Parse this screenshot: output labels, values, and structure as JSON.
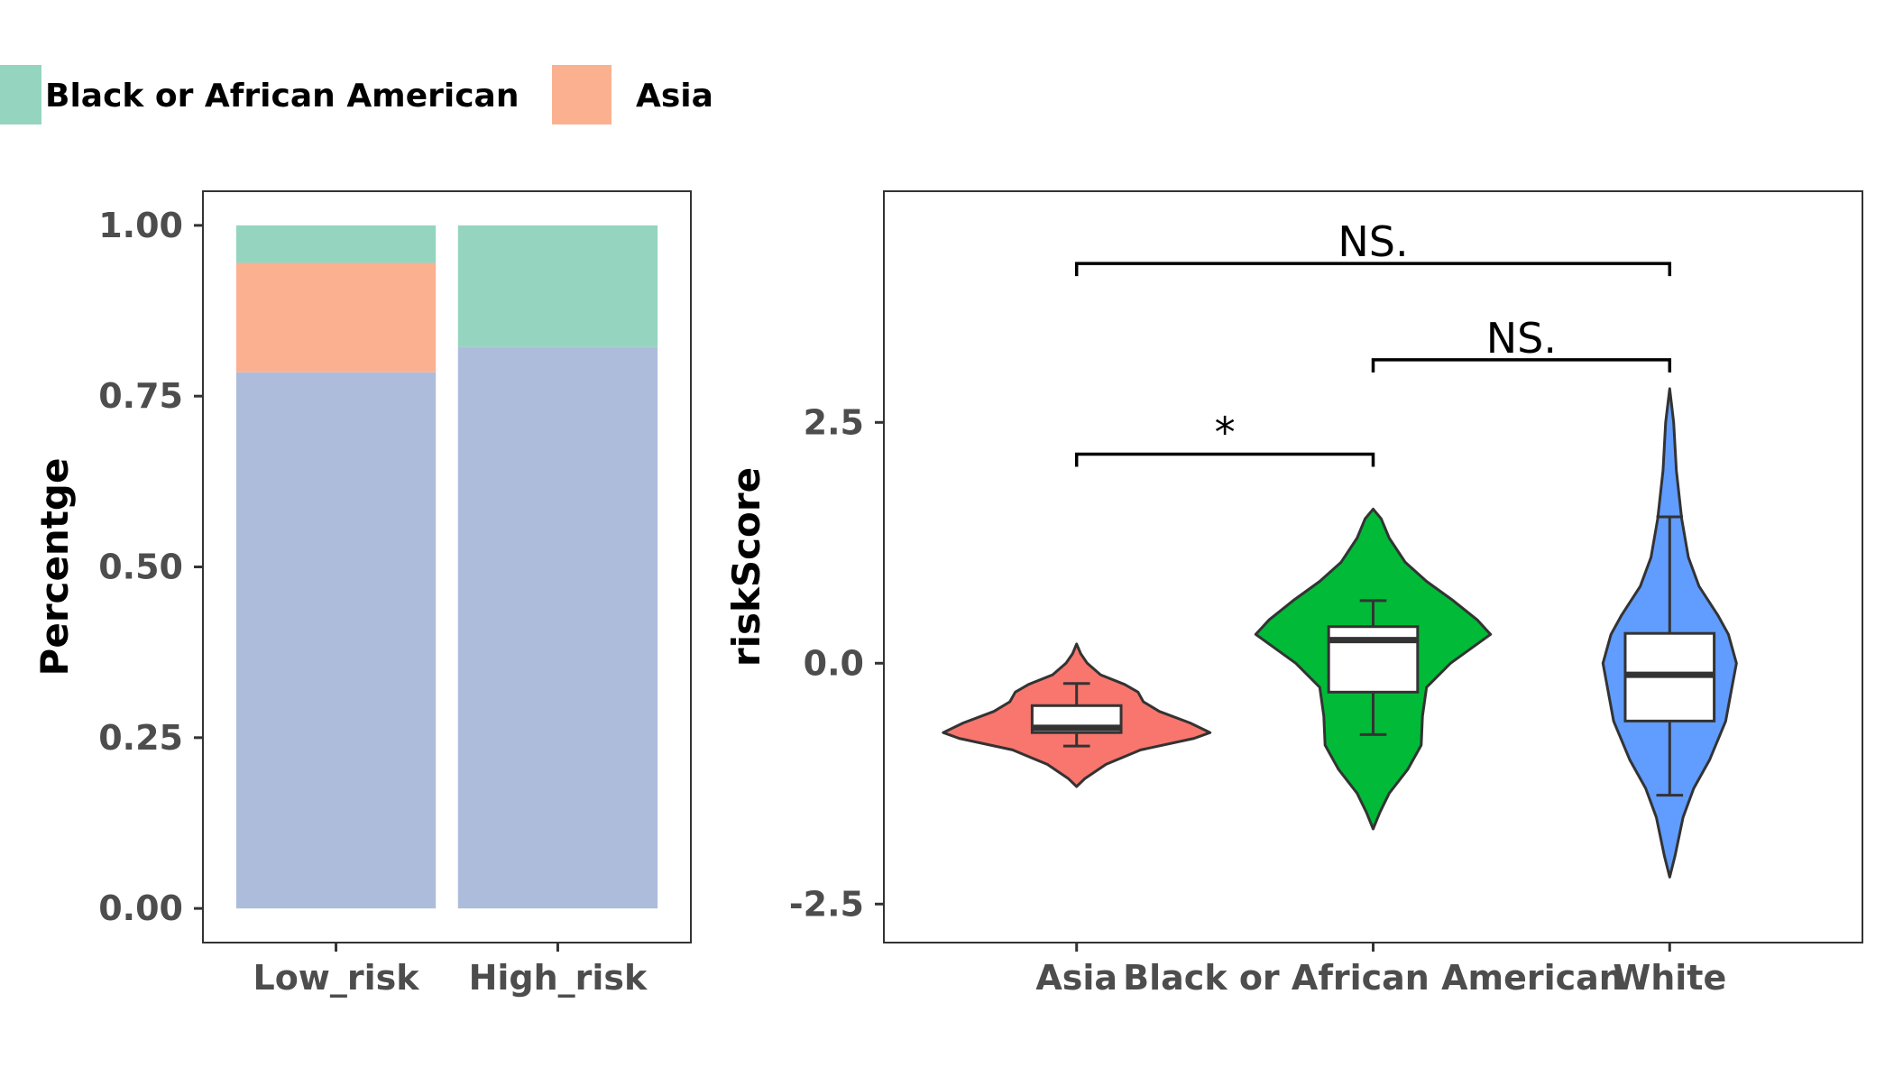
{
  "legend": {
    "items": [
      {
        "label": "Black or African American",
        "color": "#95d5c0"
      },
      {
        "label": "Asia",
        "color": "#fbb190"
      }
    ]
  },
  "chart_data": [
    {
      "type": "bar",
      "stacked": true,
      "categories": [
        "Low_risk",
        "High_risk"
      ],
      "series": [
        {
          "key": "white",
          "color": "#aebcdb",
          "values": [
            0.785,
            0.822
          ]
        },
        {
          "name": "Asia",
          "color": "#fbb190",
          "values": [
            0.16,
            0.0
          ]
        },
        {
          "name": "Black or African American",
          "color": "#95d5c0",
          "values": [
            0.055,
            0.178
          ]
        }
      ],
      "ylabel": "Percentge",
      "ylim": [
        -0.05,
        1.05
      ],
      "yticks": [
        0,
        0.25,
        0.5,
        0.75,
        1
      ],
      "ytick_labels": [
        "0.00",
        "0.25",
        "0.50",
        "0.75",
        "1.00"
      ],
      "grid": false,
      "legend_position": "top"
    },
    {
      "type": "violin",
      "categories": [
        "Asia",
        "Black or African American",
        "White"
      ],
      "ylabel": "riskScore",
      "ylim": [
        -2.9,
        4.9
      ],
      "yticks": [
        -2.5,
        0,
        2.5
      ],
      "ytick_labels": [
        "-2.5",
        "0.0",
        "2.5"
      ],
      "grid": false,
      "groups": [
        {
          "name": "Asia",
          "color": "#f8766d",
          "violin_profile": [
            [
              -1.28,
              0.0
            ],
            [
              -1.2,
              0.06
            ],
            [
              -1.05,
              0.22
            ],
            [
              -0.9,
              0.48
            ],
            [
              -0.78,
              0.88
            ],
            [
              -0.72,
              1.0
            ],
            [
              -0.62,
              0.85
            ],
            [
              -0.5,
              0.62
            ],
            [
              -0.4,
              0.5
            ],
            [
              -0.3,
              0.46
            ],
            [
              -0.22,
              0.36
            ],
            [
              -0.12,
              0.18
            ],
            [
              0.0,
              0.08
            ],
            [
              0.1,
              0.03
            ],
            [
              0.2,
              0.0
            ]
          ],
          "box": {
            "whisker_low": -0.86,
            "q1": -0.72,
            "median": -0.67,
            "q3": -0.44,
            "whisker_high": -0.21
          }
        },
        {
          "name": "Black or African American",
          "color": "#00ba38",
          "violin_profile": [
            [
              -1.72,
              0.0
            ],
            [
              -1.55,
              0.05
            ],
            [
              -1.35,
              0.12
            ],
            [
              -1.1,
              0.26
            ],
            [
              -0.85,
              0.36
            ],
            [
              -0.55,
              0.37
            ],
            [
              -0.25,
              0.4
            ],
            [
              0.0,
              0.58
            ],
            [
              0.3,
              0.88
            ],
            [
              0.45,
              0.78
            ],
            [
              0.65,
              0.6
            ],
            [
              0.85,
              0.4
            ],
            [
              1.05,
              0.24
            ],
            [
              1.3,
              0.12
            ],
            [
              1.5,
              0.06
            ],
            [
              1.6,
              0.0
            ]
          ],
          "box": {
            "whisker_low": -0.74,
            "q1": -0.3,
            "median": 0.24,
            "q3": 0.38,
            "whisker_high": 0.65
          }
        },
        {
          "name": "White",
          "color": "#619cff",
          "violin_profile": [
            [
              -2.22,
              0.0
            ],
            [
              -2.0,
              0.04
            ],
            [
              -1.6,
              0.1
            ],
            [
              -1.3,
              0.18
            ],
            [
              -1.0,
              0.3
            ],
            [
              -0.6,
              0.42
            ],
            [
              -0.3,
              0.46
            ],
            [
              0.0,
              0.5
            ],
            [
              0.3,
              0.44
            ],
            [
              0.5,
              0.36
            ],
            [
              0.8,
              0.22
            ],
            [
              1.1,
              0.14
            ],
            [
              1.5,
              0.09
            ],
            [
              2.0,
              0.05
            ],
            [
              2.5,
              0.03
            ],
            [
              2.85,
              0.0
            ]
          ],
          "box": {
            "whisker_low": -1.37,
            "q1": -0.6,
            "median": -0.12,
            "q3": 0.31,
            "whisker_high": 1.52
          }
        }
      ],
      "comparisons": [
        {
          "from": "Asia",
          "to": "Black or African American",
          "y": 2.17,
          "label": "*"
        },
        {
          "from": "Black or African American",
          "to": "White",
          "y": 3.15,
          "label": "NS."
        },
        {
          "from": "Asia",
          "to": "White",
          "y": 4.15,
          "label": "NS."
        }
      ]
    }
  ]
}
